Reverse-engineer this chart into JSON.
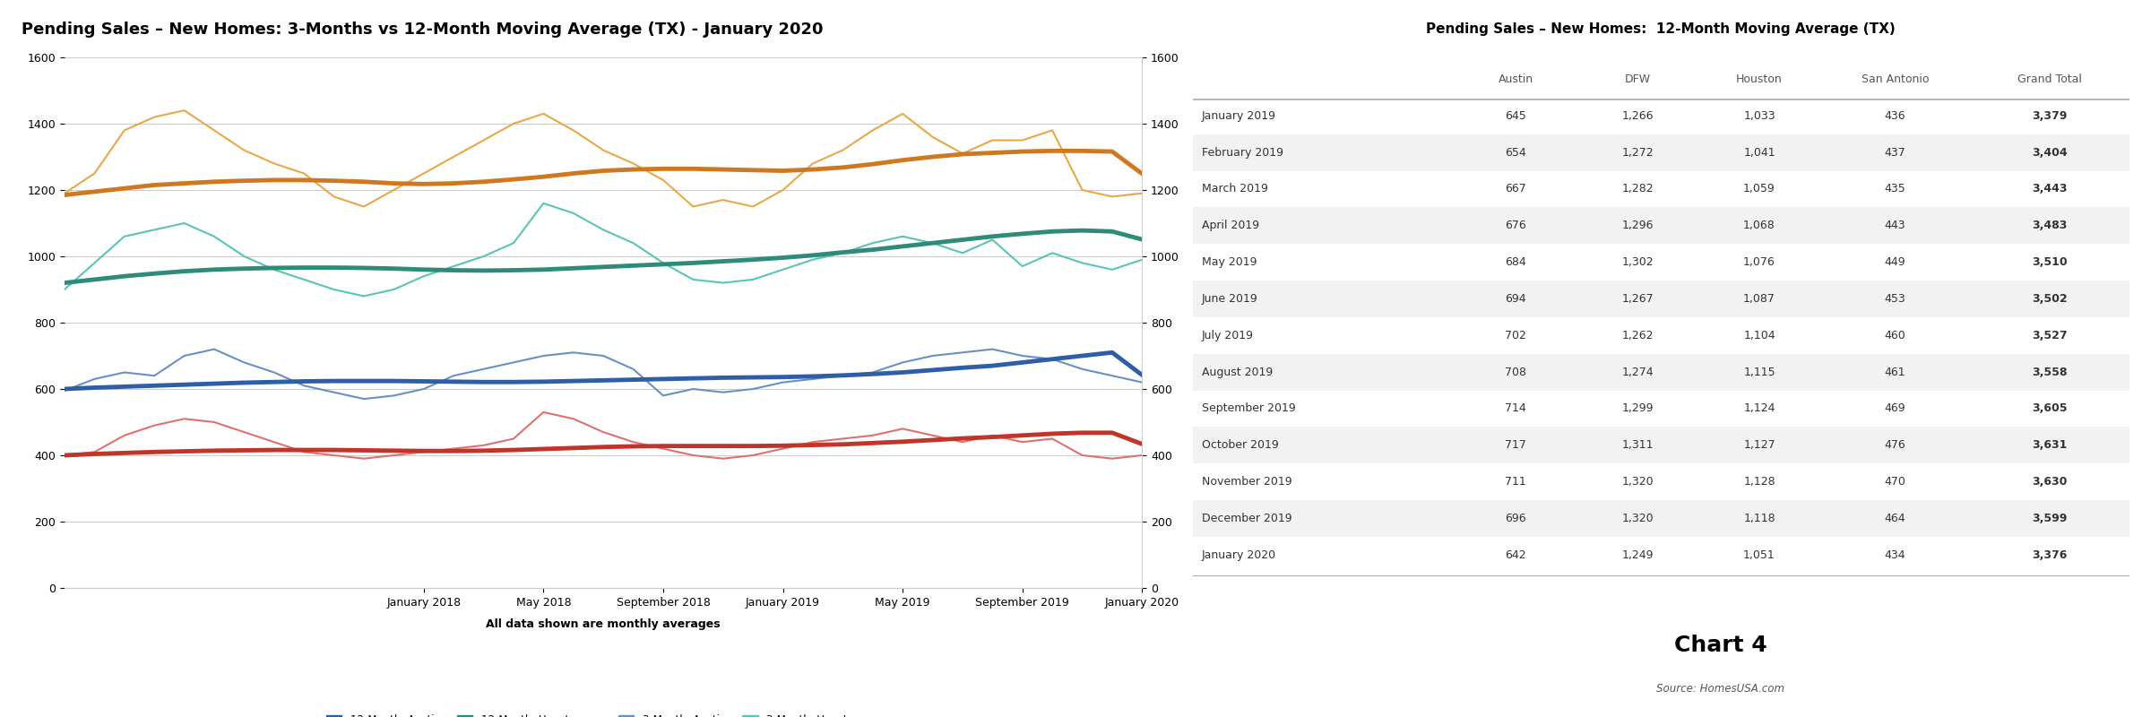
{
  "chart_title": "Pending Sales – New Homes: 3-Months vs 12-Month Moving Average (TX) - January 2020",
  "table_title": "Pending Sales – New Homes:  12-Month Moving Average (TX)",
  "subtitle": "All data shown are monthly averages",
  "source": "Source: HomesUSA.com",
  "chart4_label": "Chart 4",
  "ylim": [
    0,
    1600
  ],
  "yticks": [
    0,
    200,
    400,
    600,
    800,
    1000,
    1200,
    1400,
    1600
  ],
  "ma12_austin": [
    600,
    604,
    607,
    610,
    613,
    616,
    619,
    621,
    623,
    624,
    624,
    624,
    623,
    622,
    621,
    621,
    622,
    624,
    626,
    628,
    630,
    632,
    634,
    635,
    636,
    638,
    641,
    645,
    650,
    657,
    664,
    670,
    680,
    690,
    700,
    710,
    642
  ],
  "ma12_dfw": [
    1185,
    1195,
    1205,
    1215,
    1220,
    1225,
    1228,
    1230,
    1230,
    1228,
    1225,
    1220,
    1218,
    1220,
    1225,
    1232,
    1240,
    1250,
    1258,
    1262,
    1264,
    1264,
    1262,
    1260,
    1258,
    1262,
    1268,
    1278,
    1290,
    1300,
    1308,
    1312,
    1316,
    1318,
    1318,
    1316,
    1249
  ],
  "ma12_houston": [
    920,
    930,
    940,
    948,
    955,
    960,
    963,
    965,
    966,
    966,
    965,
    963,
    960,
    958,
    957,
    958,
    960,
    964,
    968,
    972,
    976,
    980,
    985,
    990,
    996,
    1003,
    1012,
    1020,
    1030,
    1040,
    1050,
    1060,
    1068,
    1075,
    1078,
    1075,
    1051
  ],
  "ma12_sanantonio": [
    400,
    404,
    407,
    410,
    412,
    414,
    415,
    416,
    416,
    416,
    415,
    414,
    413,
    413,
    414,
    416,
    419,
    422,
    425,
    427,
    428,
    428,
    428,
    428,
    429,
    431,
    433,
    437,
    441,
    446,
    451,
    455,
    460,
    465,
    468,
    468,
    434
  ],
  "ma3_austin": [
    595,
    630,
    650,
    640,
    700,
    720,
    680,
    650,
    610,
    590,
    570,
    580,
    600,
    640,
    660,
    680,
    700,
    710,
    700,
    660,
    580,
    600,
    590,
    600,
    620,
    630,
    640,
    650,
    680,
    700,
    710,
    720,
    700,
    690,
    660,
    640,
    620
  ],
  "ma3_dfw": [
    1190,
    1250,
    1380,
    1420,
    1440,
    1380,
    1320,
    1280,
    1250,
    1180,
    1150,
    1200,
    1250,
    1300,
    1350,
    1400,
    1430,
    1380,
    1320,
    1280,
    1230,
    1150,
    1170,
    1150,
    1200,
    1280,
    1320,
    1380,
    1430,
    1360,
    1310,
    1350,
    1350,
    1380,
    1200,
    1180,
    1190
  ],
  "ma3_houston": [
    900,
    980,
    1060,
    1080,
    1100,
    1060,
    1000,
    960,
    930,
    900,
    880,
    900,
    940,
    970,
    1000,
    1040,
    1160,
    1130,
    1080,
    1040,
    980,
    930,
    920,
    930,
    960,
    990,
    1010,
    1040,
    1060,
    1040,
    1010,
    1050,
    970,
    1010,
    980,
    960,
    990
  ],
  "ma3_sanantonio": [
    400,
    410,
    460,
    490,
    510,
    500,
    470,
    440,
    410,
    400,
    390,
    400,
    410,
    420,
    430,
    450,
    530,
    510,
    470,
    440,
    420,
    400,
    390,
    400,
    420,
    440,
    450,
    460,
    480,
    460,
    440,
    460,
    440,
    450,
    400,
    390,
    400
  ],
  "color_12m_austin": "#2E5EA8",
  "color_12m_dfw": "#D07820",
  "color_12m_houston": "#2E8B7A",
  "color_12m_sanantonio": "#C0352A",
  "color_3m_austin": "#6B8FC4",
  "color_3m_dfw": "#E8A84A",
  "color_3m_houston": "#5BC4B4",
  "color_3m_sanantonio": "#E07070",
  "lw_12m": 3.5,
  "lw_3m": 1.5,
  "table_rows": [
    [
      "January 2019",
      "645",
      "1,266",
      "1,033",
      "436",
      "3,379"
    ],
    [
      "February 2019",
      "654",
      "1,272",
      "1,041",
      "437",
      "3,404"
    ],
    [
      "March 2019",
      "667",
      "1,282",
      "1,059",
      "435",
      "3,443"
    ],
    [
      "April 2019",
      "676",
      "1,296",
      "1,068",
      "443",
      "3,483"
    ],
    [
      "May 2019",
      "684",
      "1,302",
      "1,076",
      "449",
      "3,510"
    ],
    [
      "June 2019",
      "694",
      "1,267",
      "1,087",
      "453",
      "3,502"
    ],
    [
      "July 2019",
      "702",
      "1,262",
      "1,104",
      "460",
      "3,527"
    ],
    [
      "August 2019",
      "708",
      "1,274",
      "1,115",
      "461",
      "3,558"
    ],
    [
      "September 2019",
      "714",
      "1,299",
      "1,124",
      "469",
      "3,605"
    ],
    [
      "October 2019",
      "717",
      "1,311",
      "1,127",
      "476",
      "3,631"
    ],
    [
      "November 2019",
      "711",
      "1,320",
      "1,128",
      "470",
      "3,630"
    ],
    [
      "December 2019",
      "696",
      "1,320",
      "1,118",
      "464",
      "3,599"
    ],
    [
      "January 2020",
      "642",
      "1,249",
      "1,051",
      "434",
      "3,376"
    ]
  ],
  "table_cols": [
    "",
    "Austin",
    "DFW",
    "Houston",
    "San Antonio",
    "Grand Total"
  ],
  "col_widths": [
    0.28,
    0.13,
    0.13,
    0.13,
    0.16,
    0.17
  ],
  "background_color": "#FFFFFF",
  "grid_color": "#CCCCCC",
  "line_color": "#AAAAAA"
}
